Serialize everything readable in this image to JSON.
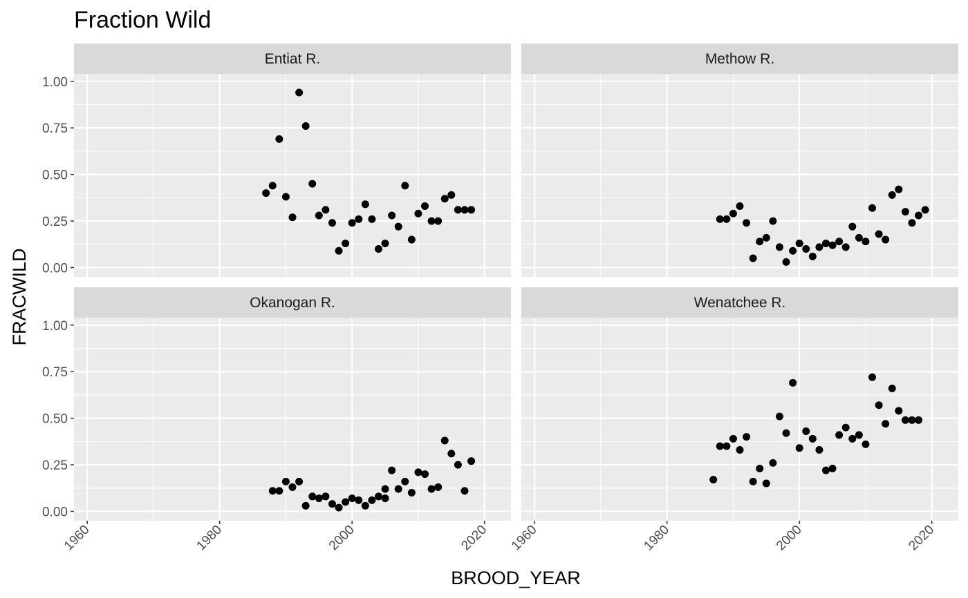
{
  "chart_data": {
    "type": "scatter",
    "title": "Fraction Wild",
    "xlabel": "BROOD_YEAR",
    "ylabel": "FRACWILD",
    "xlim": [
      1958,
      2024
    ],
    "ylim": [
      -0.05,
      1.04
    ],
    "x_ticks": [
      1960,
      1980,
      2000,
      2020
    ],
    "x_ticks_minor": [
      1970,
      1990,
      2010
    ],
    "y_ticks": [
      0.0,
      0.25,
      0.5,
      0.75,
      1.0
    ],
    "y_tick_labels": [
      "0.00",
      "0.25",
      "0.50",
      "0.75",
      "1.00"
    ],
    "grid": true,
    "panels": [
      {
        "name": "Entiat R.",
        "points": [
          [
            1987,
            0.4
          ],
          [
            1988,
            0.44
          ],
          [
            1989,
            0.69
          ],
          [
            1990,
            0.38
          ],
          [
            1991,
            0.27
          ],
          [
            1992,
            0.94
          ],
          [
            1993,
            0.76
          ],
          [
            1994,
            0.45
          ],
          [
            1995,
            0.28
          ],
          [
            1996,
            0.31
          ],
          [
            1997,
            0.24
          ],
          [
            1998,
            0.09
          ],
          [
            1999,
            0.13
          ],
          [
            2000,
            0.24
          ],
          [
            2001,
            0.26
          ],
          [
            2002,
            0.34
          ],
          [
            2003,
            0.26
          ],
          [
            2004,
            0.1
          ],
          [
            2005,
            0.13
          ],
          [
            2006,
            0.28
          ],
          [
            2007,
            0.22
          ],
          [
            2008,
            0.44
          ],
          [
            2009,
            0.15
          ],
          [
            2010,
            0.29
          ],
          [
            2011,
            0.33
          ],
          [
            2012,
            0.25
          ],
          [
            2013,
            0.25
          ],
          [
            2014,
            0.37
          ],
          [
            2015,
            0.39
          ],
          [
            2016,
            0.31
          ],
          [
            2017,
            0.31
          ],
          [
            2018,
            0.31
          ]
        ]
      },
      {
        "name": "Methow R.",
        "points": [
          [
            1988,
            0.26
          ],
          [
            1989,
            0.26
          ],
          [
            1990,
            0.29
          ],
          [
            1991,
            0.33
          ],
          [
            1992,
            0.24
          ],
          [
            1993,
            0.05
          ],
          [
            1994,
            0.14
          ],
          [
            1995,
            0.16
          ],
          [
            1996,
            0.25
          ],
          [
            1997,
            0.11
          ],
          [
            1998,
            0.03
          ],
          [
            1999,
            0.09
          ],
          [
            2000,
            0.13
          ],
          [
            2001,
            0.1
          ],
          [
            2002,
            0.06
          ],
          [
            2003,
            0.11
          ],
          [
            2004,
            0.13
          ],
          [
            2005,
            0.12
          ],
          [
            2006,
            0.14
          ],
          [
            2007,
            0.11
          ],
          [
            2008,
            0.22
          ],
          [
            2009,
            0.16
          ],
          [
            2010,
            0.14
          ],
          [
            2011,
            0.32
          ],
          [
            2012,
            0.18
          ],
          [
            2013,
            0.15
          ],
          [
            2014,
            0.39
          ],
          [
            2015,
            0.42
          ],
          [
            2016,
            0.3
          ],
          [
            2017,
            0.24
          ],
          [
            2018,
            0.28
          ],
          [
            2019,
            0.31
          ]
        ]
      },
      {
        "name": "Okanogan R.",
        "points": [
          [
            1988,
            0.11
          ],
          [
            1989,
            0.11
          ],
          [
            1990,
            0.16
          ],
          [
            1991,
            0.13
          ],
          [
            1992,
            0.16
          ],
          [
            1993,
            0.03
          ],
          [
            1994,
            0.08
          ],
          [
            1995,
            0.07
          ],
          [
            1996,
            0.08
          ],
          [
            1997,
            0.04
          ],
          [
            1998,
            0.02
          ],
          [
            1999,
            0.05
          ],
          [
            2000,
            0.07
          ],
          [
            2001,
            0.06
          ],
          [
            2002,
            0.03
          ],
          [
            2003,
            0.06
          ],
          [
            2004,
            0.08
          ],
          [
            2005,
            0.12
          ],
          [
            2005,
            0.07
          ],
          [
            2006,
            0.22
          ],
          [
            2007,
            0.12
          ],
          [
            2008,
            0.16
          ],
          [
            2009,
            0.1
          ],
          [
            2010,
            0.21
          ],
          [
            2011,
            0.2
          ],
          [
            2012,
            0.12
          ],
          [
            2013,
            0.13
          ],
          [
            2014,
            0.38
          ],
          [
            2015,
            0.31
          ],
          [
            2016,
            0.25
          ],
          [
            2017,
            0.11
          ],
          [
            2018,
            0.27
          ]
        ]
      },
      {
        "name": "Wenatchee R.",
        "points": [
          [
            1987,
            0.17
          ],
          [
            1988,
            0.35
          ],
          [
            1989,
            0.35
          ],
          [
            1990,
            0.39
          ],
          [
            1991,
            0.33
          ],
          [
            1992,
            0.4
          ],
          [
            1993,
            0.16
          ],
          [
            1994,
            0.23
          ],
          [
            1995,
            0.15
          ],
          [
            1996,
            0.26
          ],
          [
            1997,
            0.51
          ],
          [
            1998,
            0.42
          ],
          [
            1999,
            0.69
          ],
          [
            2000,
            0.34
          ],
          [
            2001,
            0.43
          ],
          [
            2002,
            0.39
          ],
          [
            2003,
            0.33
          ],
          [
            2004,
            0.22
          ],
          [
            2005,
            0.23
          ],
          [
            2006,
            0.41
          ],
          [
            2007,
            0.45
          ],
          [
            2008,
            0.39
          ],
          [
            2009,
            0.41
          ],
          [
            2010,
            0.36
          ],
          [
            2011,
            0.72
          ],
          [
            2012,
            0.57
          ],
          [
            2013,
            0.47
          ],
          [
            2014,
            0.66
          ],
          [
            2015,
            0.54
          ],
          [
            2016,
            0.49
          ],
          [
            2017,
            0.49
          ],
          [
            2018,
            0.49
          ]
        ]
      }
    ]
  },
  "colors": {
    "panel_background": "#ebebeb",
    "strip_background": "#d9d9d9",
    "grid_major": "#ffffff",
    "point": "#000000",
    "tick_text": "#4d4d4d",
    "tick_mark": "#333333"
  }
}
